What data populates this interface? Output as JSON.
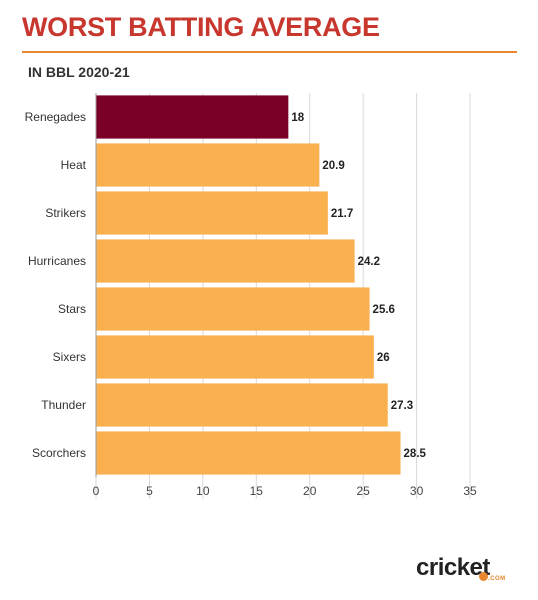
{
  "header": {
    "title": "WORST BATTING AVERAGE",
    "subtitle": "IN BBL 2020-21"
  },
  "brand": {
    "name": "cricket",
    "suffix": ".COM"
  },
  "colors": {
    "highlight": "#7a0026",
    "bar": "#fbb04f",
    "title": "#c8372d",
    "accent": "#e8872d",
    "grid": "#d9d9d9"
  },
  "chart_data": {
    "type": "bar",
    "orientation": "horizontal",
    "title": "WORST BATTING AVERAGE",
    "subtitle": "IN BBL 2020-21",
    "categories": [
      "Renegades",
      "Heat",
      "Strikers",
      "Hurricanes",
      "Stars",
      "Sixers",
      "Thunder",
      "Scorchers"
    ],
    "values": [
      18,
      20.9,
      21.7,
      24.2,
      25.6,
      26,
      27.3,
      28.5
    ],
    "value_labels": [
      "18",
      "20.9",
      "21.7",
      "24.2",
      "25.6",
      "26",
      "27.3",
      "28.5"
    ],
    "highlighted_category": "Renegades",
    "xlim": [
      0,
      35
    ],
    "xticks": [
      "0",
      "5",
      "10",
      "15",
      "20",
      "25",
      "30",
      "35"
    ],
    "xlabel": "",
    "ylabel": "",
    "grid": true,
    "legend": "none"
  }
}
